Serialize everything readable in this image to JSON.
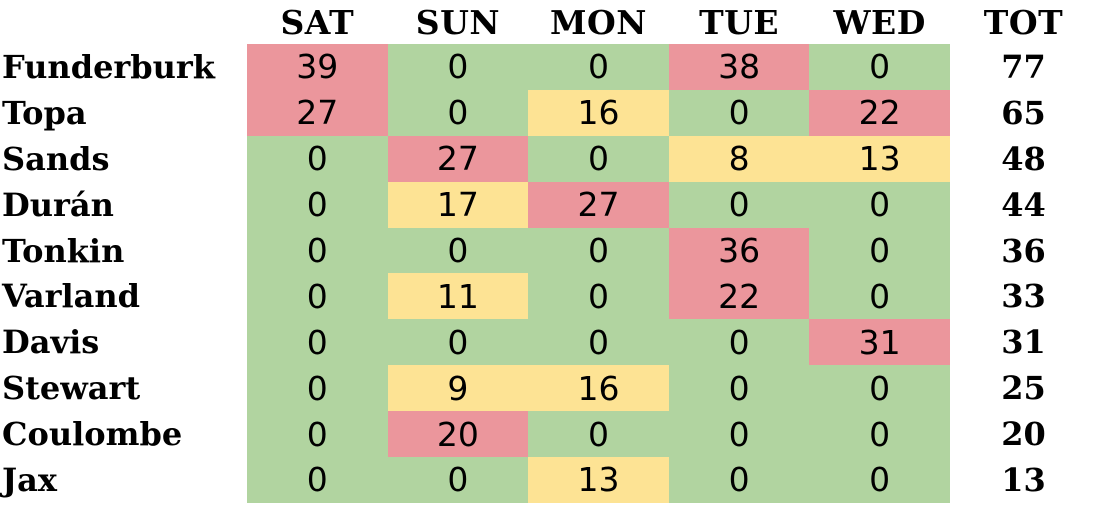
{
  "colors": {
    "green": "#b1d4a0",
    "yellow": "#fde394",
    "red": "#eb969c",
    "text": "#000000",
    "background": "#ffffff"
  },
  "chart_data": {
    "type": "heatmap",
    "columns": [
      "SAT",
      "SUN",
      "MON",
      "TUE",
      "WED",
      "TOT"
    ],
    "rows": [
      {
        "name": "Funderburk",
        "values": [
          39,
          0,
          0,
          38,
          0
        ],
        "cell_colors": [
          "red",
          "green",
          "green",
          "red",
          "green"
        ],
        "total": 77
      },
      {
        "name": "Topa",
        "values": [
          27,
          0,
          16,
          0,
          22
        ],
        "cell_colors": [
          "red",
          "green",
          "yellow",
          "green",
          "red"
        ],
        "total": 65
      },
      {
        "name": "Sands",
        "values": [
          0,
          27,
          0,
          8,
          13
        ],
        "cell_colors": [
          "green",
          "red",
          "green",
          "yellow",
          "yellow"
        ],
        "total": 48
      },
      {
        "name": "Durán",
        "values": [
          0,
          17,
          27,
          0,
          0
        ],
        "cell_colors": [
          "green",
          "yellow",
          "red",
          "green",
          "green"
        ],
        "total": 44
      },
      {
        "name": "Tonkin",
        "values": [
          0,
          0,
          0,
          36,
          0
        ],
        "cell_colors": [
          "green",
          "green",
          "green",
          "red",
          "green"
        ],
        "total": 36
      },
      {
        "name": "Varland",
        "values": [
          0,
          11,
          0,
          22,
          0
        ],
        "cell_colors": [
          "green",
          "yellow",
          "green",
          "red",
          "green"
        ],
        "total": 33
      },
      {
        "name": "Davis",
        "values": [
          0,
          0,
          0,
          0,
          31
        ],
        "cell_colors": [
          "green",
          "green",
          "green",
          "green",
          "red"
        ],
        "total": 31
      },
      {
        "name": "Stewart",
        "values": [
          0,
          9,
          16,
          0,
          0
        ],
        "cell_colors": [
          "green",
          "yellow",
          "yellow",
          "green",
          "green"
        ],
        "total": 25
      },
      {
        "name": "Coulombe",
        "values": [
          0,
          20,
          0,
          0,
          0
        ],
        "cell_colors": [
          "green",
          "red",
          "green",
          "green",
          "green"
        ],
        "total": 20
      },
      {
        "name": "Jax",
        "values": [
          0,
          0,
          13,
          0,
          0
        ],
        "cell_colors": [
          "green",
          "green",
          "yellow",
          "green",
          "green"
        ],
        "total": 13
      }
    ]
  }
}
